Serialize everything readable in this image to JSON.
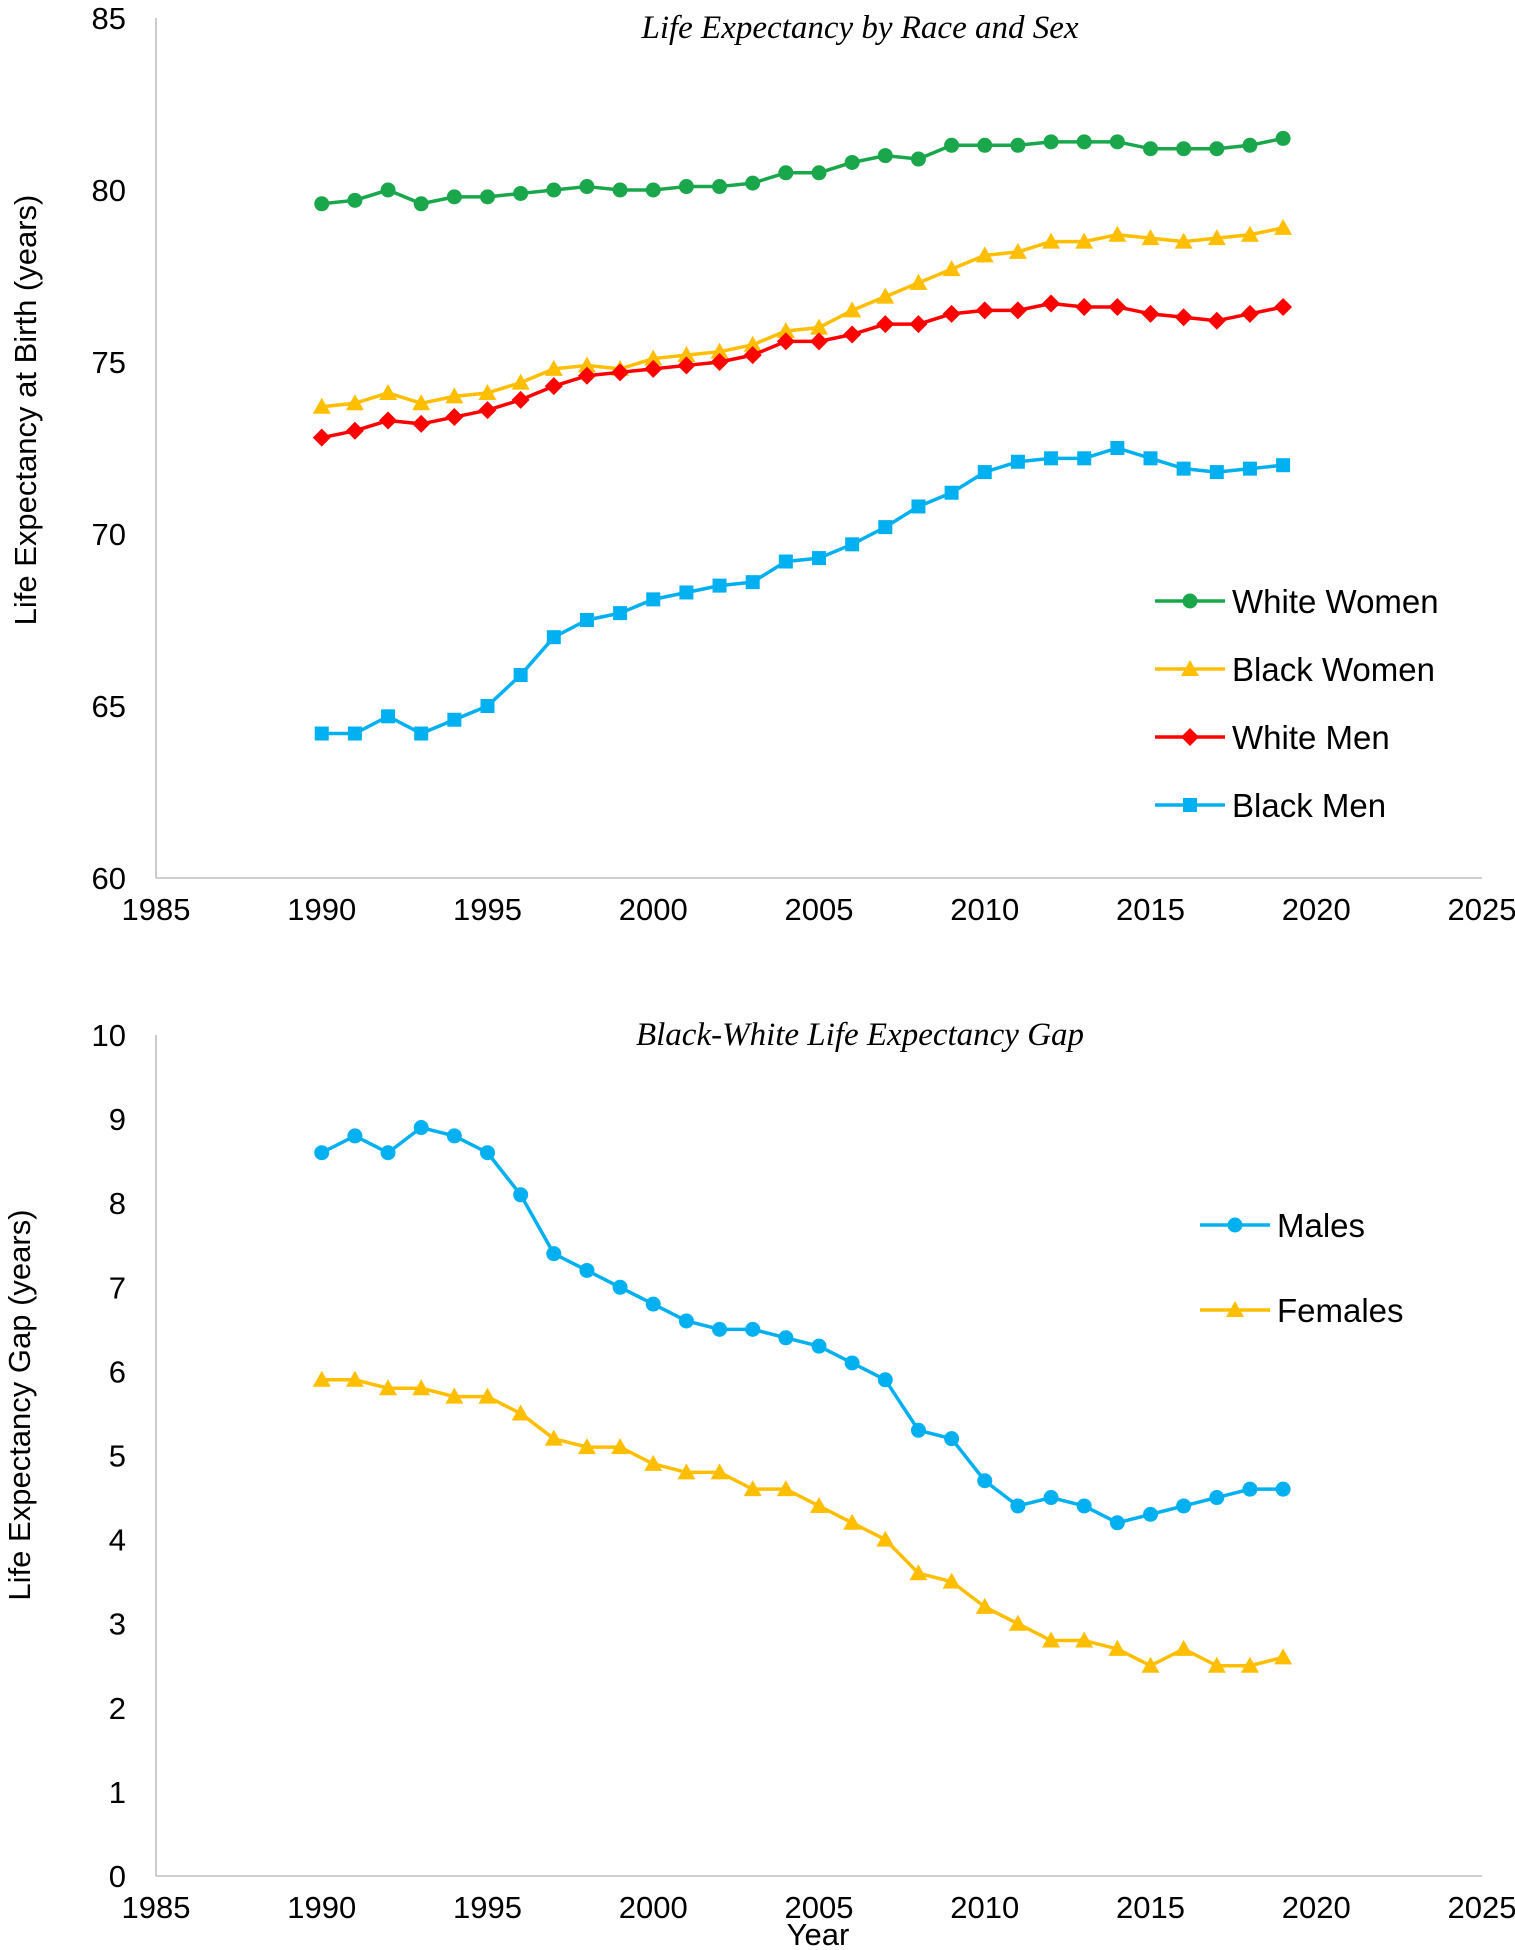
{
  "chart_data": [
    {
      "type": "line",
      "title": "Life Expectancy by Race and Sex",
      "xlabel": "",
      "ylabel": "Life Expectancy at Birth (years)",
      "xlim": [
        1985,
        2025
      ],
      "ylim": [
        60,
        85
      ],
      "xticks": [
        1985,
        1990,
        1995,
        2000,
        2005,
        2010,
        2015,
        2020,
        2025
      ],
      "yticks": [
        60,
        65,
        70,
        75,
        80,
        85
      ],
      "grid": false,
      "legend_position": "right",
      "x": [
        1990,
        1991,
        1992,
        1993,
        1994,
        1995,
        1996,
        1997,
        1998,
        1999,
        2000,
        2001,
        2002,
        2003,
        2004,
        2005,
        2006,
        2007,
        2008,
        2009,
        2010,
        2011,
        2012,
        2013,
        2014,
        2015,
        2016,
        2017,
        2018,
        2019
      ],
      "series": [
        {
          "name": "White Women",
          "color": "#1aa64a",
          "marker": "circle",
          "values": [
            79.6,
            79.7,
            80.0,
            79.6,
            79.8,
            79.8,
            79.9,
            80.0,
            80.1,
            80.0,
            80.0,
            80.1,
            80.1,
            80.2,
            80.5,
            80.5,
            80.8,
            81.0,
            80.9,
            81.3,
            81.3,
            81.3,
            81.4,
            81.4,
            81.4,
            81.2,
            81.2,
            81.2,
            81.3,
            81.5
          ]
        },
        {
          "name": "Black Women",
          "color": "#ffbf00",
          "marker": "triangle",
          "values": [
            73.7,
            73.8,
            74.1,
            73.8,
            74.0,
            74.1,
            74.4,
            74.8,
            74.9,
            74.8,
            75.1,
            75.2,
            75.3,
            75.5,
            75.9,
            76.0,
            76.5,
            76.9,
            77.3,
            77.7,
            78.1,
            78.2,
            78.5,
            78.5,
            78.7,
            78.6,
            78.5,
            78.6,
            78.7,
            78.9
          ]
        },
        {
          "name": "White Men",
          "color": "#ff0000",
          "marker": "diamond",
          "values": [
            72.8,
            73.0,
            73.3,
            73.2,
            73.4,
            73.6,
            73.9,
            74.3,
            74.6,
            74.7,
            74.8,
            74.9,
            75.0,
            75.2,
            75.6,
            75.6,
            75.8,
            76.1,
            76.1,
            76.4,
            76.5,
            76.5,
            76.7,
            76.6,
            76.6,
            76.4,
            76.3,
            76.2,
            76.4,
            76.6
          ]
        },
        {
          "name": "Black Men",
          "color": "#00b0f0",
          "marker": "square",
          "values": [
            64.2,
            64.2,
            64.7,
            64.2,
            64.6,
            65.0,
            65.9,
            67.0,
            67.5,
            67.7,
            68.1,
            68.3,
            68.5,
            68.6,
            69.2,
            69.3,
            69.7,
            70.2,
            70.8,
            71.2,
            71.8,
            72.1,
            72.2,
            72.2,
            72.5,
            72.2,
            71.9,
            71.8,
            71.9,
            72.0
          ]
        }
      ]
    },
    {
      "type": "line",
      "title": "Black-White Life Expectancy Gap",
      "xlabel": "Year",
      "ylabel": "Life Expectancy Gap (years)",
      "xlim": [
        1985,
        2025
      ],
      "ylim": [
        0,
        10
      ],
      "xticks": [
        1985,
        1990,
        1995,
        2000,
        2005,
        2010,
        2015,
        2020,
        2025
      ],
      "yticks": [
        0,
        1,
        2,
        3,
        4,
        5,
        6,
        7,
        8,
        9,
        10
      ],
      "grid": false,
      "legend_position": "right",
      "x": [
        1990,
        1991,
        1992,
        1993,
        1994,
        1995,
        1996,
        1997,
        1998,
        1999,
        2000,
        2001,
        2002,
        2003,
        2004,
        2005,
        2006,
        2007,
        2008,
        2009,
        2010,
        2011,
        2012,
        2013,
        2014,
        2015,
        2016,
        2017,
        2018,
        2019
      ],
      "series": [
        {
          "name": "Males",
          "color": "#00b0f0",
          "marker": "circle",
          "values": [
            8.6,
            8.8,
            8.6,
            8.9,
            8.8,
            8.6,
            8.1,
            7.4,
            7.2,
            7.0,
            6.8,
            6.6,
            6.5,
            6.5,
            6.4,
            6.3,
            6.1,
            5.9,
            5.3,
            5.2,
            4.7,
            4.4,
            4.5,
            4.4,
            4.2,
            4.3,
            4.4,
            4.5,
            4.6,
            4.6
          ]
        },
        {
          "name": "Females",
          "color": "#ffbf00",
          "marker": "triangle",
          "values": [
            5.9,
            5.9,
            5.8,
            5.8,
            5.7,
            5.7,
            5.5,
            5.2,
            5.1,
            5.1,
            4.9,
            4.8,
            4.8,
            4.6,
            4.6,
            4.4,
            4.2,
            4.0,
            3.6,
            3.5,
            3.2,
            3.0,
            2.8,
            2.8,
            2.7,
            2.5,
            2.7,
            2.5,
            2.5,
            2.6
          ]
        }
      ]
    }
  ]
}
